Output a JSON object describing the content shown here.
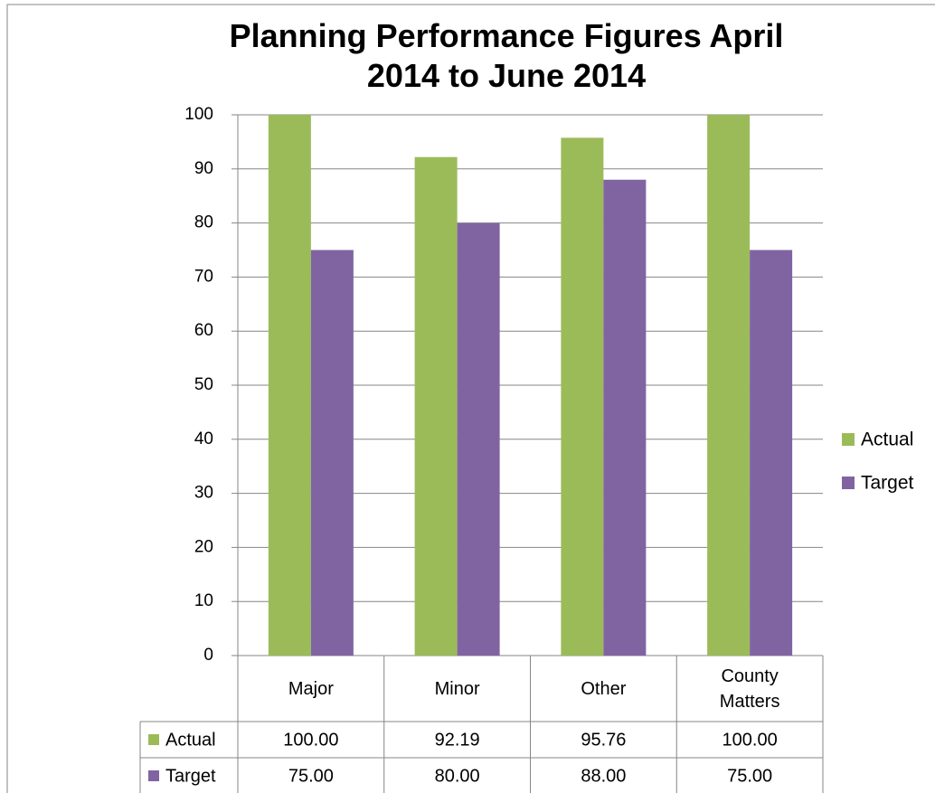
{
  "chart_data": {
    "type": "bar",
    "title": "Planning Performance Figures April 2014 to June 2014",
    "categories": [
      "Major",
      "Minor",
      "Other",
      "County Matters"
    ],
    "series": [
      {
        "name": "Actual",
        "color": "#9bbb59",
        "values": [
          100,
          92.19,
          95.76,
          100
        ],
        "value_labels": [
          "100.00",
          "92.19",
          "95.76",
          "100.00"
        ]
      },
      {
        "name": "Target",
        "color": "#8064a2",
        "values": [
          75,
          80,
          88,
          75
        ],
        "value_labels": [
          "75.00",
          "80.00",
          "88.00",
          "75.00"
        ]
      }
    ],
    "ylim": [
      0,
      100
    ],
    "yticks": [
      0,
      10,
      20,
      30,
      40,
      50,
      60,
      70,
      80,
      90,
      100
    ],
    "grid": true,
    "legend": "right",
    "data_table": true
  }
}
